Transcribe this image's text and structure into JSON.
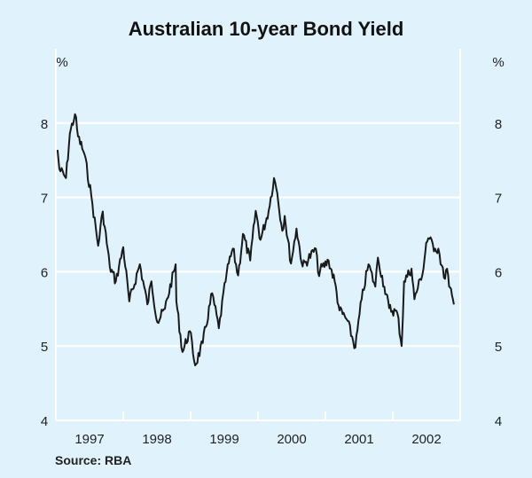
{
  "chart_data": {
    "type": "line",
    "title": "Australian 10-year Bond Yield",
    "ylabel_left": "%",
    "ylabel_right": "%",
    "source": "Source: RBA",
    "ylim": [
      4,
      9
    ],
    "yticks": [
      4,
      5,
      6,
      7,
      8
    ],
    "xlim": [
      "1997-01-01",
      "2003-01-01"
    ],
    "xtick_labels": [
      "1997",
      "1998",
      "1999",
      "2000",
      "2001",
      "2002"
    ],
    "grid": true,
    "line_color": "#1a1a1a",
    "background_color": "#e0f3fd",
    "series": [
      {
        "points": [
          [
            "1997-01-10",
            7.64
          ],
          [
            "1997-01-20",
            7.38
          ],
          [
            "1997-02-25",
            7.26
          ],
          [
            "1997-03-18",
            7.86
          ],
          [
            "1997-04-15",
            8.12
          ],
          [
            "1997-05-01",
            7.82
          ],
          [
            "1997-06-05",
            7.58
          ],
          [
            "1997-07-12",
            7.02
          ],
          [
            "1997-08-18",
            6.35
          ],
          [
            "1997-09-12",
            6.81
          ],
          [
            "1997-10-20",
            6.07
          ],
          [
            "1997-11-22",
            5.87
          ],
          [
            "1998-01-01",
            6.33
          ],
          [
            "1998-02-03",
            5.6
          ],
          [
            "1998-04-01",
            6.1
          ],
          [
            "1998-05-12",
            5.56
          ],
          [
            "1998-06-03",
            5.87
          ],
          [
            "1998-07-05",
            5.32
          ],
          [
            "1998-08-15",
            5.5
          ],
          [
            "1998-10-12",
            6.1
          ],
          [
            "1998-10-16",
            5.6
          ],
          [
            "1998-11-18",
            4.92
          ],
          [
            "1998-12-28",
            5.2
          ],
          [
            "1999-01-26",
            4.74
          ],
          [
            "1999-03-08",
            5.04
          ],
          [
            "1999-04-28",
            5.71
          ],
          [
            "1999-06-03",
            5.24
          ],
          [
            "1999-07-16",
            5.99
          ],
          [
            "1999-08-18",
            6.31
          ],
          [
            "1999-09-16",
            5.95
          ],
          [
            "1999-10-12",
            6.51
          ],
          [
            "1999-11-20",
            6.15
          ],
          [
            "1999-12-20",
            6.82
          ],
          [
            "2000-01-15",
            6.43
          ],
          [
            "2000-02-28",
            6.82
          ],
          [
            "2000-03-28",
            7.26
          ],
          [
            "2000-04-15",
            7.06
          ],
          [
            "2000-05-12",
            6.55
          ],
          [
            "2000-05-25",
            6.75
          ],
          [
            "2000-06-28",
            6.11
          ],
          [
            "2000-07-28",
            6.58
          ],
          [
            "2000-08-30",
            6.07
          ],
          [
            "2000-11-10",
            6.31
          ],
          [
            "2000-11-22",
            5.99
          ],
          [
            "2001-01-18",
            6.15
          ],
          [
            "2001-02-20",
            5.87
          ],
          [
            "2001-03-18",
            5.48
          ],
          [
            "2001-04-26",
            5.36
          ],
          [
            "2001-06-12",
            4.98
          ],
          [
            "2001-07-16",
            5.63
          ],
          [
            "2001-08-22",
            6.1
          ],
          [
            "2001-09-28",
            5.8
          ],
          [
            "2001-10-12",
            6.19
          ],
          [
            "2001-11-16",
            5.8
          ],
          [
            "2001-12-12",
            5.51
          ],
          [
            "2002-01-26",
            5.44
          ],
          [
            "2002-02-18",
            5.0
          ],
          [
            "2002-03-03",
            5.87
          ],
          [
            "2002-04-12",
            6.04
          ],
          [
            "2002-04-28",
            5.63
          ],
          [
            "2002-06-16",
            6.04
          ],
          [
            "2002-07-01",
            6.39
          ],
          [
            "2002-07-12",
            6.45
          ],
          [
            "2002-08-18",
            6.31
          ],
          [
            "2002-09-05",
            6.31
          ],
          [
            "2002-10-05",
            5.92
          ],
          [
            "2002-10-22",
            6.04
          ],
          [
            "2002-11-02",
            5.8
          ],
          [
            "2002-11-28",
            5.56
          ]
        ]
      }
    ]
  }
}
